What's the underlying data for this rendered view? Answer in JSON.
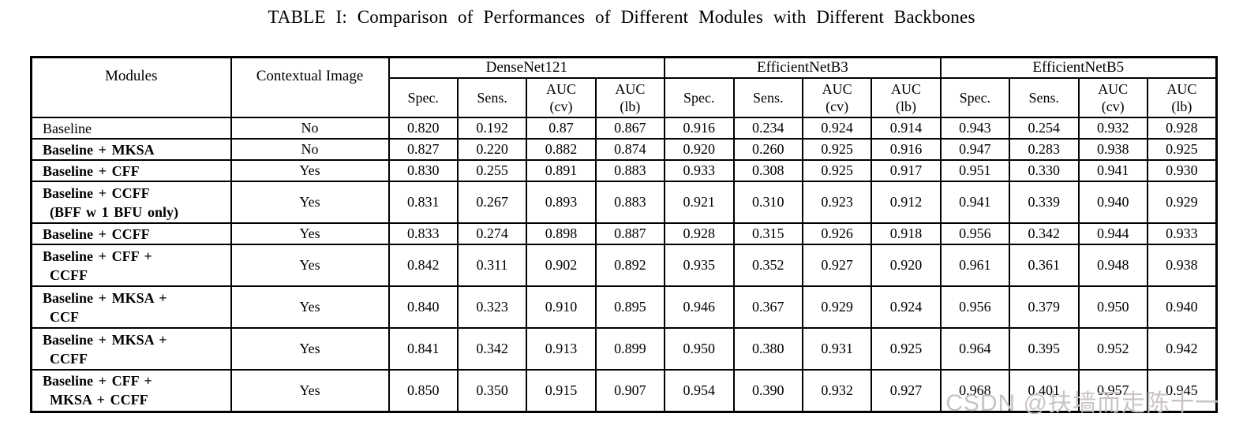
{
  "page": {
    "title": "TABLE I: Comparison of Performances of Different Modules with Different Backbones",
    "watermark": "CSDN @扶墙而走陈十一"
  },
  "table": {
    "corner_headers": [
      "Modules",
      "Contextual Image"
    ],
    "backbone_groups": [
      "DenseNet121",
      "EfficientNetB3",
      "EfficientNetB5"
    ],
    "metric_headers": [
      "Spec.",
      "Sens.",
      "AUC\n(cv)",
      "AUC\n(lb)"
    ],
    "rows": [
      {
        "module_lines": [
          "Baseline"
        ],
        "bold": false,
        "contextual_image": "No",
        "densenet121": [
          "0.820",
          "0.192",
          "0.87",
          "0.867"
        ],
        "efficientnetb3": [
          "0.916",
          "0.234",
          "0.924",
          "0.914"
        ],
        "efficientnetb5": [
          "0.943",
          "0.254",
          "0.932",
          "0.928"
        ]
      },
      {
        "module_lines": [
          "Baseline + MKSA"
        ],
        "bold": true,
        "contextual_image": "No",
        "densenet121": [
          "0.827",
          "0.220",
          "0.882",
          "0.874"
        ],
        "efficientnetb3": [
          "0.920",
          "0.260",
          "0.925",
          "0.916"
        ],
        "efficientnetb5": [
          "0.947",
          "0.283",
          "0.938",
          "0.925"
        ]
      },
      {
        "module_lines": [
          "Baseline + CFF"
        ],
        "bold": true,
        "contextual_image": "Yes",
        "densenet121": [
          "0.830",
          "0.255",
          "0.891",
          "0.883"
        ],
        "efficientnetb3": [
          "0.933",
          "0.308",
          "0.925",
          "0.917"
        ],
        "efficientnetb5": [
          "0.951",
          "0.330",
          "0.941",
          "0.930"
        ]
      },
      {
        "module_lines": [
          "Baseline + CCFF",
          "(BFF w 1 BFU only)"
        ],
        "bold": true,
        "contextual_image": "Yes",
        "densenet121": [
          "0.831",
          "0.267",
          "0.893",
          "0.883"
        ],
        "efficientnetb3": [
          "0.921",
          "0.310",
          "0.923",
          "0.912"
        ],
        "efficientnetb5": [
          "0.941",
          "0.339",
          "0.940",
          "0.929"
        ]
      },
      {
        "module_lines": [
          "Baseline + CCFF"
        ],
        "bold": true,
        "contextual_image": "Yes",
        "densenet121": [
          "0.833",
          "0.274",
          "0.898",
          "0.887"
        ],
        "efficientnetb3": [
          "0.928",
          "0.315",
          "0.926",
          "0.918"
        ],
        "efficientnetb5": [
          "0.956",
          "0.342",
          "0.944",
          "0.933"
        ]
      },
      {
        "module_lines": [
          "Baseline + CFF +",
          "CCFF"
        ],
        "bold": true,
        "contextual_image": "Yes",
        "densenet121": [
          "0.842",
          "0.311",
          "0.902",
          "0.892"
        ],
        "efficientnetb3": [
          "0.935",
          "0.352",
          "0.927",
          "0.920"
        ],
        "efficientnetb5": [
          "0.961",
          "0.361",
          "0.948",
          "0.938"
        ]
      },
      {
        "module_lines": [
          "Baseline + MKSA +",
          "CCF"
        ],
        "bold": true,
        "contextual_image": "Yes",
        "densenet121": [
          "0.840",
          "0.323",
          "0.910",
          "0.895"
        ],
        "efficientnetb3": [
          "0.946",
          "0.367",
          "0.929",
          "0.924"
        ],
        "efficientnetb5": [
          "0.956",
          "0.379",
          "0.950",
          "0.940"
        ]
      },
      {
        "module_lines": [
          "Baseline + MKSA +",
          "CCFF"
        ],
        "bold": true,
        "contextual_image": "Yes",
        "densenet121": [
          "0.841",
          "0.342",
          "0.913",
          "0.899"
        ],
        "efficientnetb3": [
          "0.950",
          "0.380",
          "0.931",
          "0.925"
        ],
        "efficientnetb5": [
          "0.964",
          "0.395",
          "0.952",
          "0.942"
        ]
      },
      {
        "module_lines": [
          "Baseline + CFF +",
          "MKSA + CCFF"
        ],
        "bold": true,
        "contextual_image": "Yes",
        "densenet121": [
          "0.850",
          "0.350",
          "0.915",
          "0.907"
        ],
        "efficientnetb3": [
          "0.954",
          "0.390",
          "0.932",
          "0.927"
        ],
        "efficientnetb5": [
          "0.968",
          "0.401",
          "0.957",
          "0.945"
        ]
      }
    ]
  }
}
